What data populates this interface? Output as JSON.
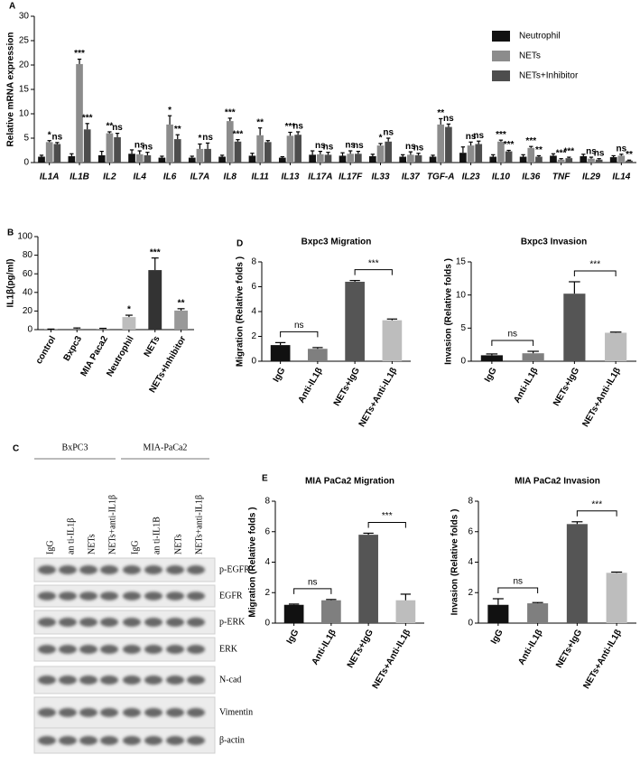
{
  "chart_data": [
    {
      "type": "bar",
      "panel": "A",
      "ylabel": "Relative mRNA expression",
      "categories": [
        "IL1A",
        "IL1B",
        "IL2",
        "IL4",
        "IL6",
        "IL7A",
        "IL8",
        "IL11",
        "IL13",
        "IL17A",
        "IL17F",
        "IL33",
        "IL37",
        "TGF-A",
        "IL23",
        "IL10",
        "IL36",
        "TNF",
        "IL29",
        "IL14"
      ],
      "ylim": [
        0,
        30
      ],
      "yticks": [
        0,
        5,
        10,
        15,
        20,
        25,
        30
      ],
      "series": [
        {
          "name": "Neutrophil",
          "color": "#111111",
          "values": [
            1.2,
            1.3,
            1.5,
            1.8,
            1.0,
            1.0,
            1.2,
            1.4,
            1.0,
            1.6,
            1.4,
            1.3,
            1.2,
            1.2,
            2.0,
            1.2,
            1.2,
            1.4,
            1.3,
            1.1
          ],
          "errors": [
            0.3,
            0.5,
            0.8,
            0.8,
            0.3,
            0.3,
            0.3,
            0.5,
            0.2,
            0.8,
            0.6,
            0.4,
            0.4,
            0.3,
            1.2,
            0.4,
            0.4,
            0.4,
            0.4,
            0.3
          ]
        },
        {
          "name": "NETs",
          "color": "#8c8c8c",
          "values": [
            4.2,
            20.2,
            6.0,
            1.7,
            7.8,
            2.8,
            8.5,
            5.6,
            5.5,
            1.7,
            1.8,
            3.5,
            1.6,
            7.8,
            3.5,
            4.3,
            3.0,
            0.6,
            0.8,
            1.4
          ],
          "errors": [
            0.3,
            1.0,
            0.3,
            0.7,
            1.8,
            1.0,
            0.6,
            1.5,
            0.7,
            0.6,
            0.6,
            0.4,
            0.6,
            1.2,
            0.7,
            0.3,
            0.3,
            0.2,
            0.3,
            0.3
          ],
          "annotations": [
            "*",
            "***",
            "**",
            "ns",
            "*",
            "*",
            "***",
            "**",
            "***",
            "ns",
            "ns",
            "*",
            "ns",
            "**",
            "ns",
            "***",
            "***",
            "***",
            "ns",
            "ns"
          ]
        },
        {
          "name": "NETs+Inhibitor",
          "color": "#4d4d4d",
          "values": [
            3.8,
            6.8,
            5.2,
            1.5,
            4.8,
            2.8,
            4.3,
            4.2,
            5.7,
            1.6,
            1.8,
            4.3,
            1.5,
            7.3,
            3.8,
            2.3,
            1.2,
            0.9,
            0.6,
            0.4
          ],
          "errors": [
            0.3,
            1.2,
            0.8,
            0.6,
            0.9,
            1.2,
            0.4,
            0.3,
            0.6,
            0.5,
            0.5,
            0.7,
            0.4,
            0.6,
            0.6,
            0.2,
            0.2,
            0.2,
            0.2,
            0.1
          ],
          "annotations": [
            "ns",
            "***",
            "ns",
            "ns",
            "**",
            "ns",
            "***",
            null,
            "ns",
            "ns",
            "ns",
            "ns",
            "ns",
            "ns",
            "ns",
            "***",
            "**",
            "***",
            "ns",
            "**"
          ]
        }
      ]
    },
    {
      "type": "bar",
      "panel": "B",
      "ylabel": "IL1β(pg/ml)",
      "categories": [
        "control",
        "Bxpc3",
        "MIA Paca2",
        "Neutrophil",
        "NETs",
        "NETs+Inhibitor"
      ],
      "ylim": [
        0,
        100
      ],
      "yticks": [
        0,
        20,
        40,
        60,
        80,
        100
      ],
      "colors": [
        "#888888",
        "#888888",
        "#888888",
        "#bdbdbd",
        "#333333",
        "#999999"
      ],
      "values": [
        0.3,
        1,
        0.8,
        13.5,
        64,
        20.5
      ],
      "errors": [
        0.3,
        0.8,
        0.6,
        2,
        13,
        2
      ],
      "annotations": [
        null,
        null,
        null,
        "*",
        "***",
        "**"
      ]
    },
    {
      "type": "bar",
      "panel": "D",
      "title": "Bxpc3  Migration",
      "ylabel": "Migration (Relative folds )",
      "categories": [
        "IgG",
        "Anti-IL1β",
        "NETs+IgG",
        "NETs+Anti-IL1β"
      ],
      "ylim": [
        0,
        8
      ],
      "yticks": [
        0,
        2,
        4,
        6,
        8
      ],
      "colors": [
        "#111111",
        "#7f7f7f",
        "#555555",
        "#bdbdbd"
      ],
      "values": [
        1.3,
        1.0,
        6.4,
        3.3
      ],
      "errors": [
        0.2,
        0.1,
        0.1,
        0.1
      ],
      "comparisons": [
        "ns",
        "***"
      ]
    },
    {
      "type": "bar",
      "title": "Bxpc3  Invasion",
      "ylabel": "Invasion (Relative folds )",
      "categories": [
        "IgG",
        "Anti-IL1β",
        "NETs+IgG",
        "NETs+Anti-IL1β"
      ],
      "ylim": [
        0,
        15
      ],
      "yticks": [
        0,
        5,
        10,
        15
      ],
      "colors": [
        "#111111",
        "#7f7f7f",
        "#555555",
        "#bdbdbd"
      ],
      "values": [
        0.9,
        1.2,
        10.2,
        4.3
      ],
      "errors": [
        0.2,
        0.3,
        1.8,
        0.1
      ],
      "comparisons": [
        "ns",
        "***"
      ]
    },
    {
      "type": "bar",
      "panel": "E",
      "title": "MIA PaCa2  Migration",
      "ylabel": "Migration (Relative folds )",
      "categories": [
        "IgG",
        "Anti-IL1β",
        "NETs+IgG",
        "NETs+Anti-IL1β"
      ],
      "ylim": [
        0,
        8
      ],
      "yticks": [
        0,
        2,
        4,
        6,
        8
      ],
      "colors": [
        "#111111",
        "#7f7f7f",
        "#555555",
        "#bdbdbd"
      ],
      "values": [
        1.2,
        1.5,
        5.8,
        1.5
      ],
      "errors": [
        0.05,
        0.05,
        0.1,
        0.4
      ],
      "comparisons": [
        "ns",
        "***"
      ]
    },
    {
      "type": "bar",
      "title": "MIA PaCa2  Invasion",
      "ylabel": "Invasion (Relative folds )",
      "categories": [
        "IgG",
        "Anti-IL1β",
        "NETs+IgG",
        "NETs+Anti-IL1β"
      ],
      "ylim": [
        0,
        8
      ],
      "yticks": [
        0,
        2,
        4,
        6,
        8
      ],
      "colors": [
        "#111111",
        "#7f7f7f",
        "#555555",
        "#bdbdbd"
      ],
      "values": [
        1.2,
        1.3,
        6.5,
        3.3
      ],
      "errors": [
        0.4,
        0.05,
        0.15,
        0.05
      ],
      "comparisons": [
        "ns",
        "***"
      ]
    }
  ],
  "blot": {
    "panel": "C",
    "groups": [
      {
        "name": "BxPC3",
        "lanes": [
          "IgG",
          "an ti-IL1β",
          "NETs",
          "NETs+anti-IL1β"
        ]
      },
      {
        "name": "MIA-PaCa2",
        "lanes": [
          "IgG",
          "an ti-IL1B",
          "NETs",
          "NETs+anti-IL1β"
        ]
      }
    ],
    "rows": [
      "p-EGFR",
      "EGFR",
      "p-ERK",
      "ERK",
      "N-cad",
      "Vimentin",
      "β-actin"
    ]
  }
}
